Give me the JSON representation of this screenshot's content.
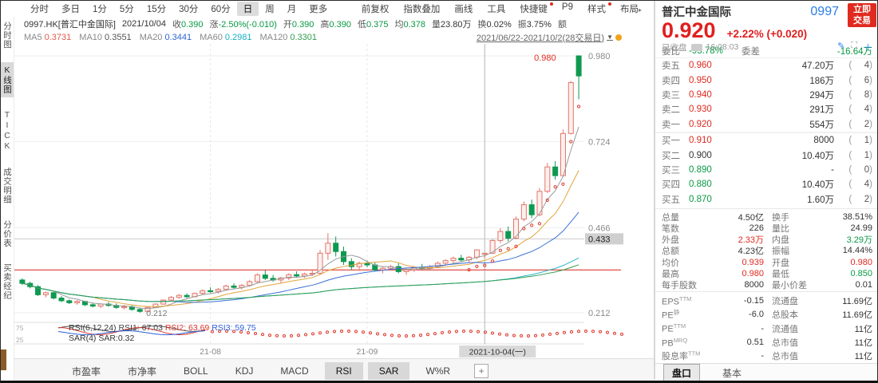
{
  "toolbar": {
    "periods": [
      "分时",
      "多日",
      "1分",
      "5分",
      "15分",
      "30分",
      "60分",
      "日",
      "周",
      "月",
      "更多"
    ],
    "active_period": "日",
    "tools": [
      {
        "label": "前复权",
        "badge": false,
        "arrow": false
      },
      {
        "label": "指数叠加",
        "badge": false,
        "arrow": false
      },
      {
        "label": "画线",
        "badge": false,
        "arrow": false
      },
      {
        "label": "工具",
        "badge": false,
        "arrow": false
      },
      {
        "label": "快捷键",
        "badge": true,
        "arrow": false
      },
      {
        "label": "P9",
        "badge": false,
        "arrow": false
      },
      {
        "label": "样式",
        "badge": true,
        "arrow": false
      },
      {
        "label": "布局",
        "badge": false,
        "arrow": true
      }
    ]
  },
  "info_bar": {
    "symbol": "0997.HK[普汇中金国际]",
    "date": "2021/10/04",
    "fields": [
      {
        "label": "收",
        "value": "0.390",
        "color": "green"
      },
      {
        "label": "涨",
        "value": "-2.50%(-0.010)",
        "color": "green"
      },
      {
        "label": "开",
        "value": "0.390",
        "color": "green"
      },
      {
        "label": "高",
        "value": "0.390",
        "color": "green"
      },
      {
        "label": "低",
        "value": "0.375",
        "color": "green"
      },
      {
        "label": "均",
        "value": "0.378",
        "color": "green"
      },
      {
        "label": "量",
        "value": "23.80万",
        "color": "flat"
      },
      {
        "label": "换",
        "value": "0.02%",
        "color": "flat"
      },
      {
        "label": "振",
        "value": "3.75%",
        "color": "flat"
      },
      {
        "label": "额",
        "value": "",
        "color": "flat"
      }
    ]
  },
  "ma_bar": {
    "items": [
      {
        "label": "MA5",
        "value": "0.3731",
        "color": "#e05b4b"
      },
      {
        "label": "MA10",
        "value": "0.3551",
        "color": "#555555"
      },
      {
        "label": "MA20",
        "value": "0.3441",
        "color": "#2f66d0"
      },
      {
        "label": "MA60",
        "value": "0.2981",
        "color": "#19aec4"
      },
      {
        "label": "MA120",
        "value": "0.3301",
        "color": "#2f9e4f"
      }
    ],
    "range": "2021/06/22-2021/10/2(28交易日)"
  },
  "sidebar": {
    "items": [
      "分时图",
      "K线图",
      "TICK",
      "成交明细",
      "分价表",
      "买卖经纪"
    ],
    "active": "K线图"
  },
  "chart": {
    "price_top": 0.98,
    "price_bottom": 0.212,
    "y_ticks": [
      {
        "label": "0.980",
        "price": 0.98
      },
      {
        "label": "0.724",
        "price": 0.724
      },
      {
        "label": "0.466",
        "price": 0.466
      },
      {
        "label": "0.212",
        "price": 0.212
      }
    ],
    "price_tag": {
      "label": "0.433",
      "price": 0.433
    },
    "x_ticks": [
      {
        "label": "21-08",
        "index": 24
      },
      {
        "label": "21-09",
        "index": 44
      }
    ],
    "crosshair": {
      "index": 59,
      "price": 0.433,
      "date_label": "2021-10-04(一)"
    },
    "drawn_line_price": 0.34,
    "high_label": {
      "text": "0.980",
      "price": 0.98
    },
    "low_label": {
      "text": "0.212",
      "index": 15
    },
    "up_color": "#e2766a",
    "up_fill": "#fdf0ee",
    "down_color": "#0e9950",
    "ma_lines": [
      {
        "period": 5,
        "color": "#9a9a9a"
      },
      {
        "period": 10,
        "color": "#e0a53c"
      },
      {
        "period": 20,
        "color": "#3b6fd6"
      },
      {
        "period": 60,
        "color": "#2ab3c9"
      },
      {
        "period": 120,
        "color": "#2f9e4f"
      }
    ],
    "candles": [
      [
        0.31,
        0.315,
        0.295,
        0.3
      ],
      [
        0.3,
        0.305,
        0.285,
        0.29
      ],
      [
        0.29,
        0.295,
        0.262,
        0.266
      ],
      [
        0.266,
        0.276,
        0.258,
        0.272
      ],
      [
        0.272,
        0.274,
        0.252,
        0.256
      ],
      [
        0.256,
        0.262,
        0.244,
        0.248
      ],
      [
        0.248,
        0.252,
        0.238,
        0.242
      ],
      [
        0.242,
        0.25,
        0.236,
        0.246
      ],
      [
        0.246,
        0.248,
        0.232,
        0.236
      ],
      [
        0.236,
        0.242,
        0.228,
        0.232
      ],
      [
        0.232,
        0.24,
        0.226,
        0.238
      ],
      [
        0.238,
        0.244,
        0.23,
        0.234
      ],
      [
        0.234,
        0.24,
        0.224,
        0.228
      ],
      [
        0.228,
        0.236,
        0.222,
        0.23
      ],
      [
        0.23,
        0.234,
        0.218,
        0.222
      ],
      [
        0.222,
        0.228,
        0.212,
        0.216
      ],
      [
        0.216,
        0.23,
        0.214,
        0.228
      ],
      [
        0.228,
        0.24,
        0.226,
        0.238
      ],
      [
        0.238,
        0.252,
        0.236,
        0.25
      ],
      [
        0.25,
        0.262,
        0.246,
        0.258
      ],
      [
        0.258,
        0.268,
        0.254,
        0.264
      ],
      [
        0.264,
        0.27,
        0.256,
        0.26
      ],
      [
        0.26,
        0.272,
        0.258,
        0.27
      ],
      [
        0.27,
        0.282,
        0.266,
        0.278
      ],
      [
        0.278,
        0.288,
        0.272,
        0.276
      ],
      [
        0.276,
        0.286,
        0.27,
        0.282
      ],
      [
        0.282,
        0.296,
        0.278,
        0.292
      ],
      [
        0.292,
        0.3,
        0.284,
        0.288
      ],
      [
        0.288,
        0.298,
        0.282,
        0.294
      ],
      [
        0.294,
        0.31,
        0.29,
        0.305
      ],
      [
        0.305,
        0.33,
        0.3,
        0.325
      ],
      [
        0.325,
        0.34,
        0.31,
        0.315
      ],
      [
        0.315,
        0.325,
        0.305,
        0.31
      ],
      [
        0.31,
        0.32,
        0.3,
        0.316
      ],
      [
        0.316,
        0.33,
        0.31,
        0.326
      ],
      [
        0.326,
        0.336,
        0.318,
        0.322
      ],
      [
        0.322,
        0.332,
        0.316,
        0.328
      ],
      [
        0.328,
        0.338,
        0.322,
        0.33
      ],
      [
        0.33,
        0.4,
        0.325,
        0.39
      ],
      [
        0.39,
        0.45,
        0.37,
        0.42
      ],
      [
        0.42,
        0.44,
        0.38,
        0.395
      ],
      [
        0.395,
        0.41,
        0.355,
        0.365
      ],
      [
        0.365,
        0.375,
        0.34,
        0.35
      ],
      [
        0.35,
        0.365,
        0.342,
        0.36
      ],
      [
        0.36,
        0.368,
        0.348,
        0.355
      ],
      [
        0.355,
        0.362,
        0.335,
        0.34
      ],
      [
        0.34,
        0.35,
        0.33,
        0.345
      ],
      [
        0.345,
        0.355,
        0.338,
        0.35
      ],
      [
        0.35,
        0.36,
        0.33,
        0.335
      ],
      [
        0.335,
        0.345,
        0.325,
        0.34
      ],
      [
        0.34,
        0.352,
        0.334,
        0.348
      ],
      [
        0.348,
        0.358,
        0.34,
        0.345
      ],
      [
        0.345,
        0.355,
        0.338,
        0.35
      ],
      [
        0.35,
        0.365,
        0.345,
        0.36
      ],
      [
        0.36,
        0.372,
        0.352,
        0.368
      ],
      [
        0.368,
        0.38,
        0.36,
        0.375
      ],
      [
        0.375,
        0.385,
        0.365,
        0.37
      ],
      [
        0.37,
        0.382,
        0.362,
        0.378
      ],
      [
        0.378,
        0.402,
        0.372,
        0.4
      ],
      [
        0.39,
        0.39,
        0.375,
        0.39
      ],
      [
        0.39,
        0.432,
        0.388,
        0.428
      ],
      [
        0.428,
        0.465,
        0.42,
        0.455
      ],
      [
        0.455,
        0.47,
        0.425,
        0.435
      ],
      [
        0.435,
        0.5,
        0.432,
        0.492
      ],
      [
        0.492,
        0.545,
        0.485,
        0.535
      ],
      [
        0.535,
        0.55,
        0.495,
        0.505
      ],
      [
        0.505,
        0.585,
        0.5,
        0.575
      ],
      [
        0.575,
        0.66,
        0.57,
        0.648
      ],
      [
        0.648,
        0.665,
        0.61,
        0.622
      ],
      [
        0.622,
        0.76,
        0.618,
        0.748
      ],
      [
        0.748,
        0.905,
        0.745,
        0.9
      ],
      [
        0.98,
        0.98,
        0.85,
        0.92
      ]
    ]
  },
  "rsi_pane": {
    "formula": "RSI(6,12,24)",
    "values": [
      {
        "label": "RSI1:",
        "value": "67.03",
        "color": "#444444"
      },
      {
        "label": "RSI2:",
        "value": "63.69",
        "color": "#d9342b"
      },
      {
        "label": "RSI3:",
        "value": "59.75",
        "color": "#2b5fd9"
      }
    ],
    "sar_line": "SAR(4) SAR:0.32",
    "axis_hi": "75",
    "axis_lo": "25"
  },
  "indicator_tabs": {
    "items": [
      "市盈率",
      "市净率",
      "BOLL",
      "KDJ",
      "MACD",
      "RSI",
      "SAR",
      "W%R"
    ],
    "active": [
      "RSI",
      "SAR"
    ],
    "add_button": "+"
  },
  "quote": {
    "name": "普汇中金国际",
    "code": "0997",
    "trade_button_line1": "立即",
    "trade_button_line2": "交易",
    "price": "0.920",
    "change_pct": "+2.22%",
    "change_val": "(+0.020)",
    "status": "已收盘",
    "time": "16:08:03",
    "icons": [
      "edit",
      "screenshot",
      "add"
    ],
    "wei": {
      "bi_label": "委比",
      "bi_value": "-95.78%",
      "cha_label": "委差",
      "cha_value": "-16.64万"
    },
    "asks": [
      {
        "label": "卖五",
        "price": "0.960",
        "color": "red",
        "volume": "47.20万",
        "count": "4"
      },
      {
        "label": "卖四",
        "price": "0.950",
        "color": "red",
        "volume": "186万",
        "count": "6"
      },
      {
        "label": "卖三",
        "price": "0.940",
        "color": "red",
        "volume": "294万",
        "count": "8"
      },
      {
        "label": "卖二",
        "price": "0.930",
        "color": "red",
        "volume": "291万",
        "count": "4"
      },
      {
        "label": "卖一",
        "price": "0.920",
        "color": "red",
        "volume": "554万",
        "count": "2"
      }
    ],
    "bids": [
      {
        "label": "买一",
        "price": "0.910",
        "color": "red",
        "volume": "8000",
        "count": "1"
      },
      {
        "label": "买二",
        "price": "0.900",
        "color": "flat",
        "volume": "10.40万",
        "count": "1"
      },
      {
        "label": "买三",
        "price": "0.890",
        "color": "green",
        "volume": "-",
        "count": "0"
      },
      {
        "label": "买四",
        "price": "0.880",
        "color": "green",
        "volume": "10.40万",
        "count": "4"
      },
      {
        "label": "买五",
        "price": "0.870",
        "color": "green",
        "volume": "1.60万",
        "count": "2"
      }
    ],
    "stats": [
      {
        "l_label": "总量",
        "l_value": "4.50亿",
        "l_color": "flat",
        "r_label": "换手",
        "r_value": "38.51%",
        "r_color": "flat"
      },
      {
        "l_label": "笔数",
        "l_value": "226",
        "l_color": "flat",
        "r_label": "量比",
        "r_value": "24.99",
        "r_color": "flat"
      },
      {
        "l_label": "外盘",
        "l_value": "2.33万",
        "l_color": "red",
        "r_label": "内盘",
        "r_value": "3.29万",
        "r_color": "green"
      },
      {
        "l_label": "总额",
        "l_value": "4.23亿",
        "l_color": "flat",
        "r_label": "振幅",
        "r_value": "14.44%",
        "r_color": "flat"
      },
      {
        "l_label": "均价",
        "l_value": "0.939",
        "l_color": "red",
        "r_label": "开盘",
        "r_value": "0.980",
        "r_color": "red"
      },
      {
        "l_label": "最高",
        "l_value": "0.980",
        "l_color": "red",
        "r_label": "最低",
        "r_value": "0.850",
        "r_color": "green"
      },
      {
        "l_label": "每手股数",
        "l_value": "8000",
        "l_color": "flat",
        "r_label": "最小价差",
        "r_value": "0.01",
        "r_color": "flat"
      }
    ],
    "financials": [
      {
        "l_label": "EPS",
        "l_sup": "TTM",
        "l_value": "-0.15",
        "r_label": "流通盘",
        "r_value": "11.69亿"
      },
      {
        "l_label": "PE",
        "l_sup": "静",
        "l_value": "-6.0",
        "r_label": "总股本",
        "r_value": "11.69亿"
      },
      {
        "l_label": "PE",
        "l_sup": "TTM",
        "l_value": "-",
        "r_label": "流通值",
        "r_value": "11亿"
      },
      {
        "l_label": "PB",
        "l_sup": "MRQ",
        "l_value": "0.51",
        "r_label": "总市值",
        "r_value": "11亿"
      },
      {
        "l_label": "股息率",
        "l_sup": "TTM",
        "l_value": "-",
        "r_label": "总市值",
        "r_value": "11亿"
      }
    ],
    "tabs": [
      "盘口",
      "基本"
    ],
    "active_tab": "盘口"
  }
}
